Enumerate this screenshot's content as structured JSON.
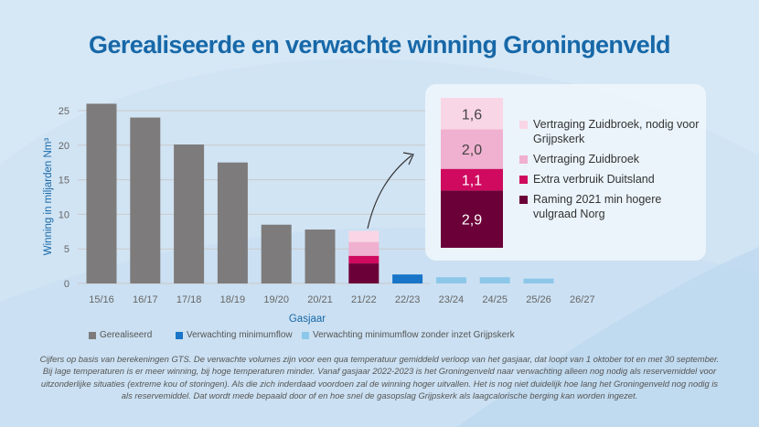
{
  "title": "Gerealiseerde en verwachte winning Groningenveld",
  "colors": {
    "title": "#1768a8",
    "realised": "#7d7b7b",
    "expected": "#1875c8",
    "expected_light": "#8cc7ea",
    "stack_dark": "#6b0038",
    "stack_magenta": "#cf0a5f",
    "stack_pink": "#f0b0cf",
    "stack_lightpink": "#f9d6e5"
  },
  "chart_data": {
    "type": "bar",
    "title": "Gerealiseerde en verwachte winning Groningenveld",
    "xlabel": "Gasjaar",
    "ylabel": "Winning in miljarden Nm³",
    "ylim": [
      0,
      25
    ],
    "yticks": [
      "0",
      "5",
      "10",
      "15",
      "20",
      "25"
    ],
    "grid": true,
    "categories": [
      "15/16",
      "16/17",
      "17/18",
      "18/19",
      "19/20",
      "20/21",
      "21/22",
      "22/23",
      "23/24",
      "24/25",
      "25/26",
      "26/27"
    ],
    "series": [
      {
        "name": "Gerealiseerd",
        "values": [
          26.0,
          24.0,
          20.1,
          17.5,
          8.5,
          7.8,
          null,
          null,
          null,
          null,
          null,
          null
        ]
      },
      {
        "name": "Verwachting minimumflow",
        "values": [
          null,
          null,
          null,
          null,
          null,
          null,
          null,
          1.3,
          null,
          null,
          null,
          null
        ]
      },
      {
        "name": "Verwachting minimumflow zonder inzet Grijpskerk",
        "values": [
          null,
          null,
          null,
          null,
          null,
          null,
          null,
          null,
          0.9,
          0.9,
          0.7,
          0
        ]
      }
    ],
    "stack_21_22": [
      {
        "name": "Raming 2021 min hogere vulgraad Norg",
        "value": 2.9,
        "label": "2,9"
      },
      {
        "name": "Extra verbruik Duitsland",
        "value": 1.1,
        "label": "1,1"
      },
      {
        "name": "Vertraging Zuidbroek",
        "value": 2.0,
        "label": "2,0"
      },
      {
        "name": "Vertraging Zuidbroek, nodig voor Grijpskerk",
        "value": 1.6,
        "label": "1,6"
      }
    ],
    "legend": [
      "Gerealiseerd",
      "Verwachting minimumflow",
      "Verwachting minimumflow zonder inzet Grijpskerk"
    ],
    "legend_position": "bottom"
  },
  "inset_legend": [
    {
      "label": "Vertraging Zuidbroek, nodig voor Grijpskerk"
    },
    {
      "label": "Vertraging Zuidbroek"
    },
    {
      "label": "Extra verbruik Duitsland"
    },
    {
      "label": "Raming 2021 min hogere vulgraad Norg"
    }
  ],
  "footnote": "Cijfers op basis van berekeningen GTS. De verwachte volumes zijn voor een qua temperatuur gemiddeld verloop van het gasjaar, dat loopt van 1 oktober tot en met 30 september. Bij lage temperaturen is er meer winning, bij hoge temperaturen minder. Vanaf gasjaar 2022-2023 is het Groningenveld naar verwachting alleen nog nodig als reservemiddel voor uitzonderlijke situaties (extreme kou of storingen). Als die zich inderdaad voordoen zal de winning hoger uitvallen. Het is nog niet duidelijk hoe lang het Groningenveld nog nodig is als reservemiddel. Dat wordt mede bepaald door of en hoe snel de gasopslag Grijpskerk als laagcalorische berging kan worden ingezet."
}
